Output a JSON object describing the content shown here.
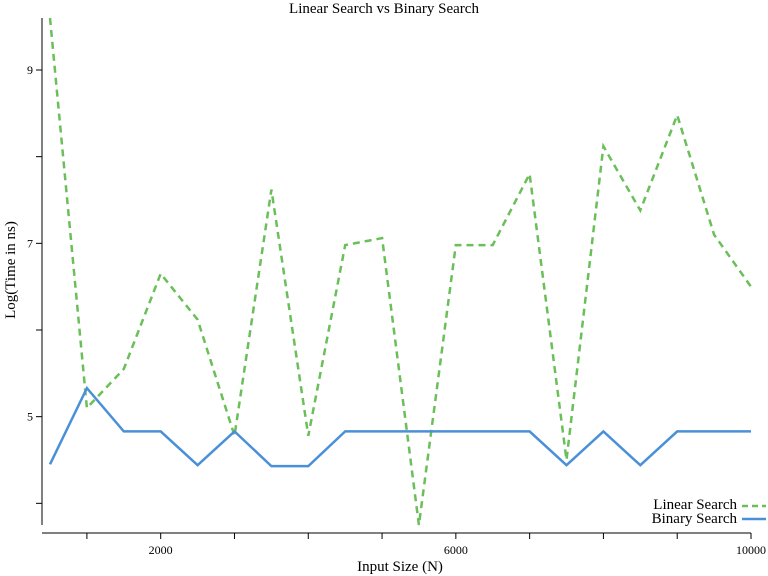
{
  "chart_data": {
    "type": "line",
    "title": "Linear Search vs Binary Search",
    "xlabel": "Input Size (N)",
    "ylabel": "Log(Time in ns)",
    "xlim": [
      500,
      10000
    ],
    "ylim": [
      3.75,
      9.6
    ],
    "x_ticks": [
      1000,
      2000,
      3000,
      4000,
      5000,
      6000,
      7000,
      8000,
      9000,
      10000
    ],
    "x_tick_labels": [
      "",
      "2000",
      "",
      "",
      "",
      "6000",
      "",
      "",
      "",
      "10000"
    ],
    "y_ticks": [
      4,
      5,
      6,
      7,
      8,
      9
    ],
    "y_tick_labels": [
      "",
      "5",
      "",
      "7",
      "",
      "9"
    ],
    "grid": false,
    "legend_position": "bottom-right",
    "x": [
      500,
      1000,
      1500,
      2000,
      2500,
      3000,
      3500,
      4000,
      4500,
      5000,
      5500,
      6000,
      6500,
      7000,
      7500,
      8000,
      8500,
      9000,
      9500,
      10000
    ],
    "series": [
      {
        "name": "Linear Search",
        "color": "#6abf59",
        "style": "dashed",
        "values": [
          9.6,
          5.1,
          5.55,
          6.65,
          6.12,
          4.78,
          7.62,
          4.78,
          6.98,
          7.06,
          3.75,
          6.98,
          6.98,
          7.8,
          4.5,
          8.12,
          7.38,
          8.48,
          7.1,
          6.5
        ]
      },
      {
        "name": "Binary Search",
        "color": "#4a90d9",
        "style": "solid",
        "values": [
          4.45,
          5.33,
          4.83,
          4.83,
          4.44,
          4.83,
          4.43,
          4.43,
          4.83,
          4.83,
          4.83,
          4.83,
          4.83,
          4.83,
          4.44,
          4.83,
          4.44,
          4.83,
          4.83,
          4.83
        ]
      }
    ]
  }
}
